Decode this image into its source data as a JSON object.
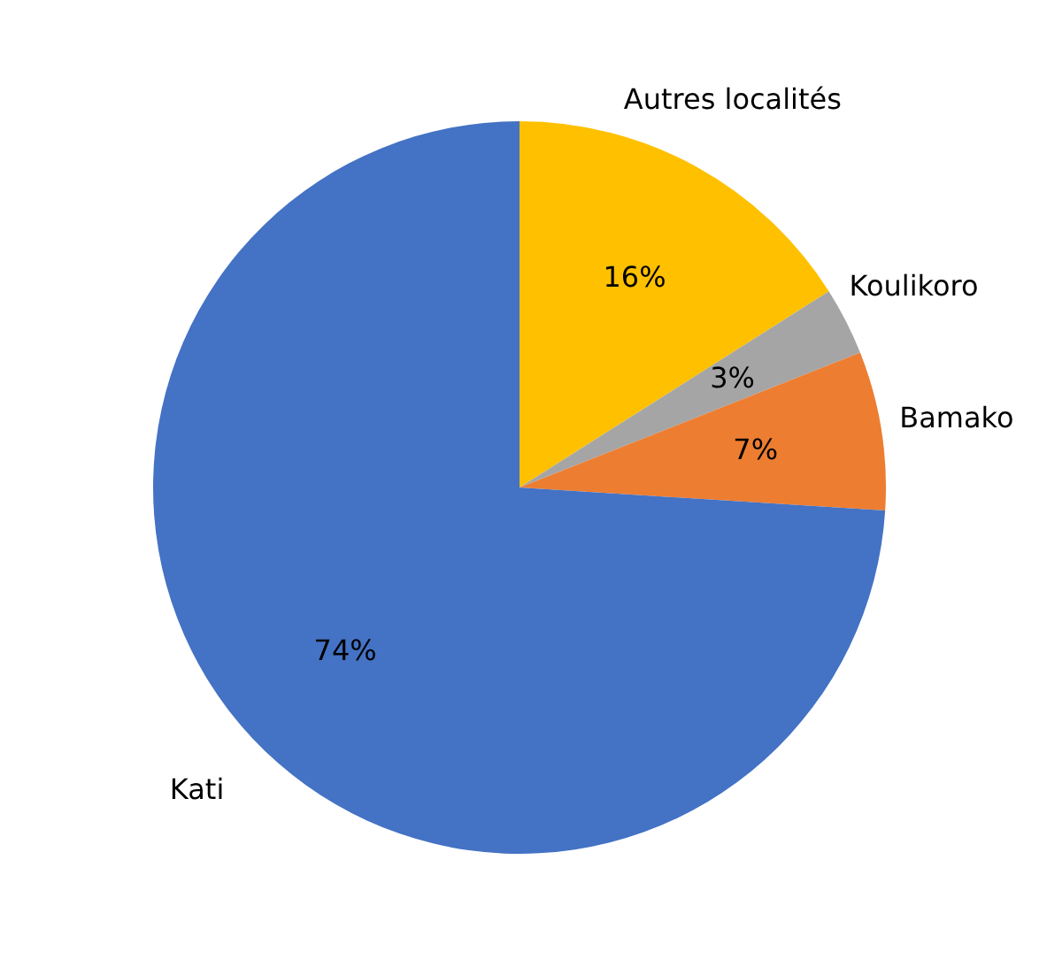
{
  "chart_data": {
    "type": "pie",
    "categories": [
      "Autres localités",
      "Koulikoro",
      "Bamako",
      "Kati"
    ],
    "values": [
      16,
      3,
      7,
      74
    ],
    "value_labels": [
      "16%",
      "3%",
      "7%",
      "74%"
    ],
    "colors": [
      "#ffc000",
      "#a5a5a5",
      "#ed7d31",
      "#4472c4"
    ],
    "legend": false
  }
}
